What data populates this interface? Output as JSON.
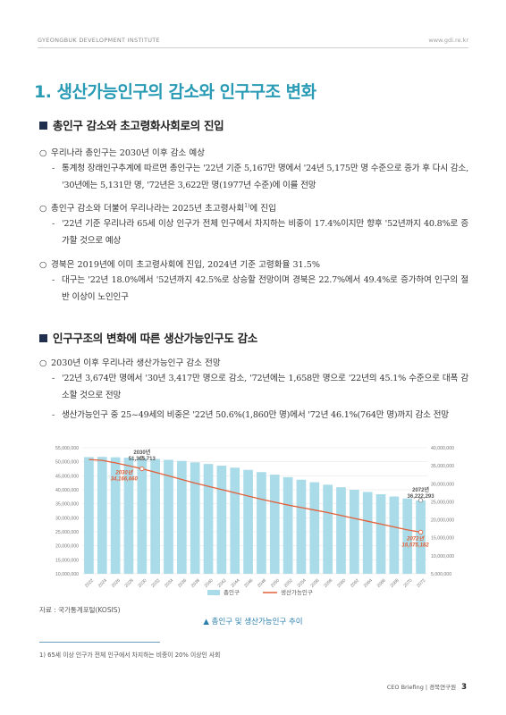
{
  "header": {
    "institute": "GYEONGBUK DEVELOPMENT INSTITUTE",
    "url": "www.gdi.re.kr"
  },
  "section_title": "1. 생산가능인구의 감소와 인구구조 변화",
  "subsection1": {
    "title": "총인구 감소와 초고령화사회로의 진입",
    "items": [
      {
        "bullet": "우리나라 총인구는 2030년 이후 감소 예상",
        "dashes": [
          "통계청 장래인구추계에 따르면 총인구는 '22년 기준 5,167만 명에서 '24년 5,175만 명 수준으로 증가 후 다시 감소, '30년에는 5,131만 명, '72년은 3,622만 명(1977년 수준)에 이를 전망"
        ]
      },
      {
        "bullet": "총인구 감소와 더불어 우리나라는 2025년 초고령사회",
        "bullet_sup": "1)",
        "bullet_tail": "에 진입",
        "dashes": [
          "'22년 기준 우리나라 65세 이상 인구가 전체 인구에서 차지하는 비중이 17.4%이지만 향후 '52년까지 40.8%로 증가할 것으로 예상"
        ]
      },
      {
        "bullet": "경북은 2019년에 이미 초고령사회에 진입, 2024년 기준 고령화율 31.5%",
        "dashes": [
          "대구는 '22년 18.0%에서 '52년까지 42.5%로 상승할 전망이며 경북은 22.7%에서 49.4%로 증가하여 인구의 절반 이상이 노인인구"
        ]
      }
    ]
  },
  "subsection2": {
    "title": "인구구조의 변화에 따른 생산가능인구도 감소",
    "items": [
      {
        "bullet": "2030년 이후 우리나라 생산가능인구 감소 전망",
        "dashes": [
          "'22년 3,674만 명에서 '30년 3,417만 명으로 감소, '72년에는 1,658만 명으로 '22년의 45.1% 수준으로 대폭 감소할 것으로 전망",
          "생산가능인구 중 25~49세의 비중은 '22년 50.6%(1,860만 명)에서 '72년 46.1%(764만 명)까지 감소 전망"
        ]
      }
    ]
  },
  "chart_data": {
    "type": "bar+line",
    "categories": [
      "2022",
      "2024",
      "2026",
      "2028",
      "2030",
      "2032",
      "2034",
      "2036",
      "2038",
      "2040",
      "2042",
      "2044",
      "2046",
      "2048",
      "2050",
      "2052",
      "2054",
      "2056",
      "2058",
      "2060",
      "2062",
      "2064",
      "2066",
      "2068",
      "2070",
      "2072"
    ],
    "left_axis_ticks": [
      "55,000,000",
      "50,000,000",
      "45,000,000",
      "40,000,000",
      "35,000,000",
      "30,000,000",
      "25,000,000",
      "20,000,000",
      "15,000,000",
      "10,000,000"
    ],
    "right_axis_ticks": [
      "40,000,000",
      "35,000,000",
      "30,000,000",
      "25,000,000",
      "20,000,000",
      "15,000,000",
      "10,000,000",
      "5,000,000"
    ],
    "left_ylim": [
      10000000,
      55000000
    ],
    "right_ylim": [
      5000000,
      40000000
    ],
    "series": [
      {
        "name": "총인구",
        "axis": "left",
        "color": "#a9dbe8",
        "values": [
          51670000,
          51750000,
          51600000,
          51450000,
          51305713,
          51000000,
          50700000,
          50300000,
          49800000,
          49200000,
          48600000,
          47900000,
          47100000,
          46300000,
          45400000,
          44500000,
          43600000,
          42700000,
          41800000,
          40900000,
          40000000,
          39200000,
          38400000,
          37600000,
          36900000,
          36222293
        ]
      },
      {
        "name": "생산가능인구",
        "axis": "right",
        "color": "#e2603a",
        "values": [
          36740000,
          36500000,
          35800000,
          35000000,
          34166660,
          33200000,
          32200000,
          31200000,
          30200000,
          29300000,
          28400000,
          27500000,
          26600000,
          25700000,
          24900000,
          24100000,
          23400000,
          22700000,
          22000000,
          21200000,
          20400000,
          19600000,
          18800000,
          18000000,
          17200000,
          16575182
        ]
      }
    ],
    "annotations": [
      {
        "label_year": "2030년",
        "label_value": "51,305,713",
        "series": "총인구",
        "index": 4
      },
      {
        "label_year": "2030년",
        "label_value": "34,166,660",
        "series": "생산가능인구",
        "index": 4
      },
      {
        "label_year": "2072년",
        "label_value": "36,222,293",
        "series": "총인구",
        "index": 25
      },
      {
        "label_year": "2072년",
        "label_value": "16,575,182",
        "series": "생산가능인구",
        "index": 25
      }
    ],
    "legend_position": "bottom"
  },
  "source": "자료 : 국가통계포털(KOSIS)",
  "caption": "▲ 총인구 및 생산가능인구 추이",
  "footnote": "1)  65세 이상 인구가 전체 인구에서 차지하는 비중이 20% 이상인 사회",
  "footer": {
    "brand": "CEO Briefing  |  경북연구원",
    "page": "3"
  },
  "colors": {
    "title": "#2a9bb5",
    "bar": "#a9dbe8",
    "line": "#e2603a",
    "square": "#1f2f4d"
  },
  "icons": {
    "subsection_marker": "filled-square",
    "bullet_marker": "hollow-circle",
    "caption_marker": "up-triangle"
  }
}
